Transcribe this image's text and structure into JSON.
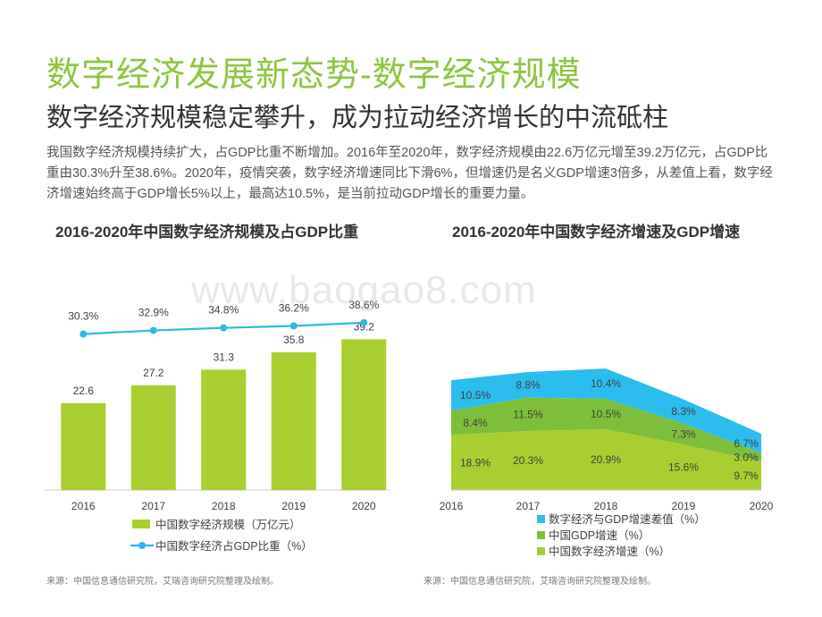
{
  "page": {
    "title": "数字经济发展新态势-数字经济规模",
    "subtitle": "数字经济规模稳定攀升，成为拉动经济增长的中流砥柱",
    "description": "我国数字经济规模持续扩大，占GDP比重不断增加。2016年至2020年，数字经济规模由22.6万亿元增至39.2万亿元，占GDP比重由30.3%升至38.6%。2020年，疫情突袭，数字经济增速同比下滑6%，但增速仍是名义GDP增速3倍多，从差值上看，数字经济增速始终高于GDP增长5%以上，最高达10.5%，是当前拉动GDP增长的重要力量。",
    "source_left": "来源：中国信息通信研究院，艾瑞咨询研究院整理及绘制。",
    "source_right": "来源：中国信息通信研究院，艾瑞咨询研究院整理及绘制。",
    "watermark": "www.baogao8.com"
  },
  "chart_data": [
    {
      "type": "bar",
      "title": "2016-2020年中国数字经济规模及占GDP比重",
      "categories": [
        "2016",
        "2017",
        "2018",
        "2019",
        "2020"
      ],
      "series": [
        {
          "name": "中国数字经济规模（万亿元）",
          "type": "bar",
          "values": [
            22.6,
            27.2,
            31.3,
            35.8,
            39.2
          ],
          "labels": [
            "22.6",
            "27.2",
            "31.3",
            "35.8",
            "39.2"
          ],
          "color": "#a8cf2f"
        },
        {
          "name": "中国数字经济占GDP比重（%）",
          "type": "line",
          "values": [
            30.3,
            32.9,
            34.8,
            36.2,
            38.6
          ],
          "labels": [
            "30.3%",
            "32.9%",
            "34.8%",
            "36.2%",
            "38.6%"
          ],
          "color": "#2cb8ea"
        }
      ]
    },
    {
      "type": "area",
      "stacked": true,
      "title": "2016-2020年中国数字经济增速及GDP增速",
      "categories": [
        "2016",
        "2017",
        "2018",
        "2019",
        "2020"
      ],
      "series": [
        {
          "name": "中国数字经济增速（%）",
          "values": [
            18.9,
            20.3,
            20.9,
            15.6,
            9.7
          ],
          "labels": [
            "18.9%",
            "20.3%",
            "20.9%",
            "15.6%",
            "9.7%"
          ],
          "color": "#a8cf2f"
        },
        {
          "name": "中国GDP增速（%）",
          "values": [
            8.4,
            11.5,
            10.5,
            7.3,
            3.0
          ],
          "labels": [
            "8.4%",
            "11.5%",
            "10.5%",
            "7.3%",
            "3.0%"
          ],
          "color": "#7dbf3a"
        },
        {
          "name": "数字经济与GDP增速差值（%）",
          "values": [
            10.5,
            8.8,
            10.4,
            8.3,
            6.7
          ],
          "labels": [
            "10.5%",
            "8.8%",
            "10.4%",
            "8.3%",
            "6.7%"
          ],
          "color": "#2cbdef"
        }
      ],
      "legend_order": [
        2,
        1,
        0
      ]
    }
  ]
}
